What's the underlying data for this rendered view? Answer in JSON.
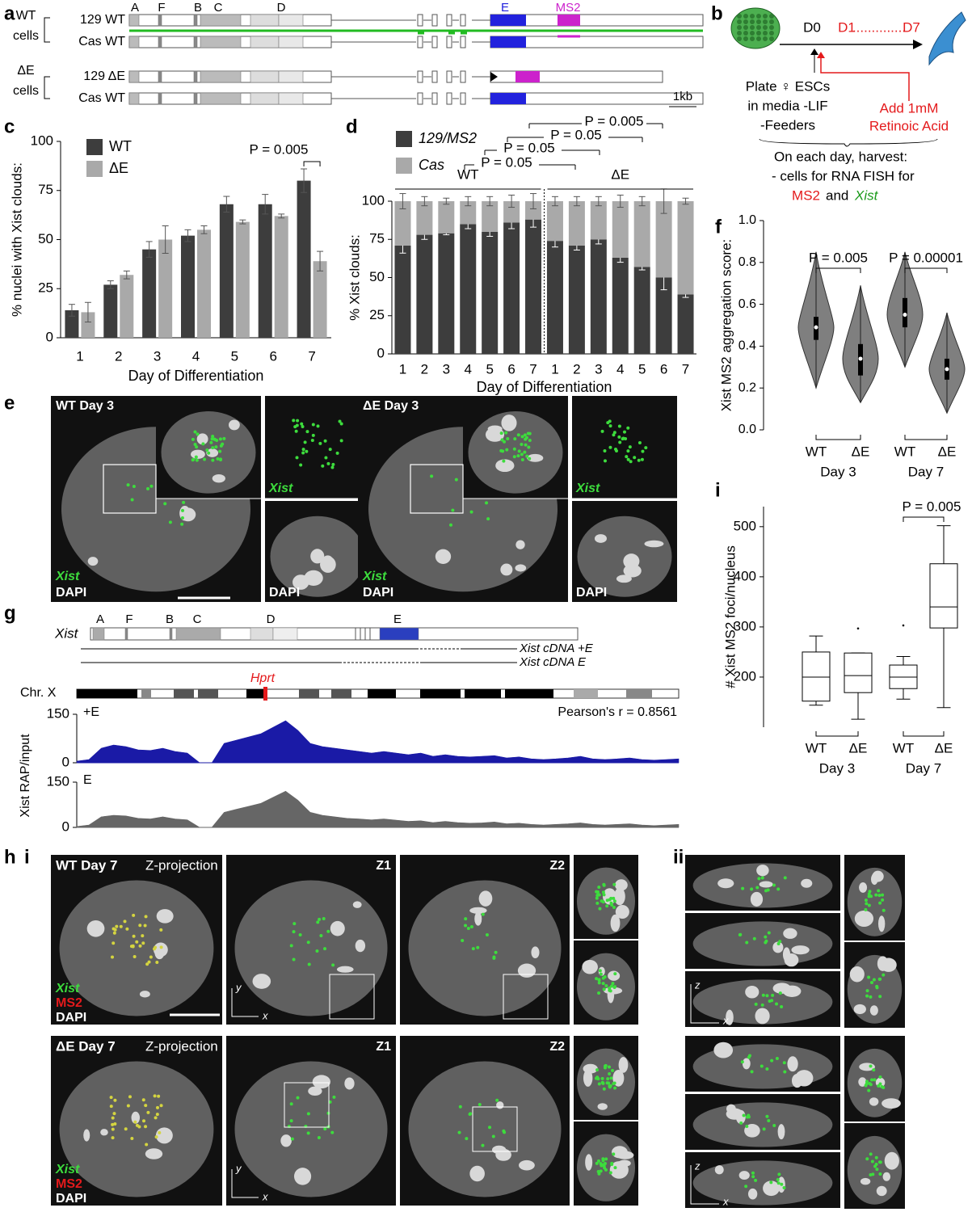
{
  "letters": [
    "a",
    "b",
    "c",
    "d",
    "e",
    "f",
    "g",
    "h",
    "i",
    "ii",
    "i"
  ],
  "a": {
    "rows": [
      "129 WT",
      "Cas WT",
      "129 ΔE",
      "Cas WT"
    ],
    "groups": [
      "WT",
      "cells",
      "ΔE",
      "cells"
    ],
    "exons": [
      "A",
      "F",
      "B",
      "C",
      "D",
      "E",
      "MS2"
    ],
    "scale": "1kb"
  },
  "b": {
    "days": [
      "D0",
      "D1",
      "..............",
      "D7"
    ],
    "left": [
      "Plate ♀ ESCs",
      "in media -LIF",
      "-Feeders"
    ],
    "right": [
      "Add 1mM",
      "Retinoic Acid"
    ],
    "harvest": [
      "On each day, harvest:",
      "- cells for RNA FISH for"
    ],
    "probes": [
      "MS2",
      "and",
      "Xist"
    ]
  },
  "e": {
    "labels": [
      "WT Day 3",
      "Xist",
      "DAPI",
      "Xist",
      "DAPI",
      "ΔE Day 3",
      "Xist",
      "DAPI",
      "Xist",
      "DAPI"
    ]
  },
  "g": {
    "gene": "Xist",
    "exons": [
      "A",
      "F",
      "B",
      "C",
      "D",
      "E"
    ],
    "cdna": [
      "Xist cDNA +E",
      "Xist cDNA   E"
    ],
    "chr": "Chr. X",
    "locus": "Hprt",
    "pearson": "Pearson's r = 0.8561",
    "ylabel": "Xist RAP/input"
  },
  "h": {
    "top": [
      "WT Day 7",
      "Z-projection",
      "Z1",
      "Z2",
      "Xist",
      "MS2",
      "DAPI",
      "y",
      "x"
    ],
    "bottom": [
      "ΔE Day 7",
      "Z-projection",
      "Z1",
      "Z2",
      "Xist",
      "MS2",
      "DAPI",
      "y",
      "x"
    ],
    "side": [
      "z",
      "x",
      "z",
      "x"
    ]
  },
  "chart_data": [
    {
      "type": "bar",
      "categories": [
        "1",
        "2",
        "3",
        "4",
        "5",
        "6",
        "7"
      ],
      "series": [
        {
          "name": "WT",
          "color": "#3d3d3d",
          "values": [
            14,
            27,
            45,
            52,
            68,
            68,
            80
          ],
          "errors": [
            3,
            2,
            4,
            3,
            4,
            5,
            6
          ]
        },
        {
          "name": "ΔE",
          "color": "#a9a9a9",
          "values": [
            13,
            32,
            50,
            55,
            59,
            62,
            39
          ],
          "errors": [
            5,
            2,
            7,
            2,
            1,
            1,
            5
          ]
        }
      ],
      "ylim": [
        0,
        100
      ],
      "yticks": [
        0,
        25,
        50,
        75,
        100
      ],
      "xlabel": "Day of Differentiation",
      "ylabel": "% nuclei with Xist clouds:",
      "annotations": [
        "P = 0.005"
      ],
      "legend": "upper left"
    },
    {
      "type": "stacked_bar",
      "categories": [
        "1",
        "2",
        "3",
        "4",
        "5",
        "6",
        "7",
        "1",
        "2",
        "3",
        "4",
        "5",
        "6",
        "7"
      ],
      "groups": [
        "WT",
        "ΔE"
      ],
      "series": [
        {
          "name": "129/MS2",
          "color": "#3d3d3d",
          "values": [
            71,
            78,
            79,
            85,
            80,
            86,
            88,
            74,
            71,
            75,
            63,
            57,
            50,
            39
          ],
          "errors": [
            5,
            3,
            1,
            3,
            3,
            4,
            5,
            4,
            3,
            3,
            3,
            2,
            8,
            2
          ]
        },
        {
          "name": "Cas",
          "color": "#a9a9a9",
          "values": [
            29,
            22,
            21,
            15,
            20,
            14,
            12,
            26,
            29,
            25,
            37,
            43,
            50,
            61
          ],
          "errors": [
            5,
            3,
            2,
            3,
            3,
            4,
            5,
            3,
            3,
            3,
            4,
            3,
            8,
            2
          ]
        }
      ],
      "ylim": [
        0,
        100
      ],
      "yticks": [
        0,
        25,
        50,
        75,
        100
      ],
      "xlabel": "Day of Differentiation",
      "ylabel": "% Xist clouds:",
      "annotations": [
        "P = 0.05",
        "P = 0.05",
        "P = 0.05",
        "P = 0.005"
      ],
      "legend": "upper left"
    },
    {
      "type": "violin",
      "categories": [
        "WT",
        "ΔE",
        "WT",
        "ΔE"
      ],
      "groups": [
        "Day 3",
        "Day 7"
      ],
      "color": "#7f7f7f",
      "min": [
        0.2,
        0.13,
        0.3,
        0.08
      ],
      "q1": [
        0.43,
        0.26,
        0.49,
        0.24
      ],
      "median": [
        0.49,
        0.34,
        0.55,
        0.29
      ],
      "q3": [
        0.54,
        0.41,
        0.63,
        0.34
      ],
      "max": [
        0.85,
        0.69,
        0.85,
        0.56
      ],
      "ylim": [
        0,
        1
      ],
      "yticks": [
        {
          "value": 0,
          "label": "0.0"
        },
        {
          "value": 0.2,
          "label": "0.2"
        },
        {
          "value": 0.4,
          "label": "0.4"
        },
        {
          "value": 0.6,
          "label": "0.6"
        },
        {
          "value": 0.8,
          "label": "0.8"
        },
        {
          "value": 1,
          "label": "1.0"
        }
      ],
      "ylabel": "Xist MS2 aggregation score:",
      "annotations": [
        "P = 0.005",
        "P = 0.00001"
      ]
    },
    {
      "type": "box",
      "categories": [
        "WT",
        "ΔE",
        "WT",
        "ΔE"
      ],
      "groups": [
        "Day 3",
        "Day 7"
      ],
      "min": [
        144,
        116,
        156,
        139
      ],
      "q1": [
        152,
        169,
        177,
        298
      ],
      "median": [
        200,
        203,
        200,
        340
      ],
      "q3": [
        250,
        248,
        224,
        426
      ],
      "max": [
        282,
        248,
        241,
        502
      ],
      "outliers": [
        [],
        [
          297
        ],
        [
          303
        ],
        []
      ],
      "ylim": [
        100,
        540
      ],
      "yticks": [
        200,
        300,
        400,
        500
      ],
      "ylabel": "# Xist MS2 foci/nucleus",
      "annotations": [
        "P = 0.005"
      ]
    },
    {
      "type": "area",
      "ylim": [
        0,
        150
      ],
      "yticks": [
        0,
        150
      ],
      "series": [
        {
          "name": "+E",
          "color": "#1a1aa6",
          "values": [
            5,
            10,
            45,
            55,
            50,
            40,
            38,
            45,
            35,
            30,
            0,
            0,
            60,
            70,
            80,
            90,
            110,
            130,
            100,
            60,
            50,
            45,
            40,
            35,
            30,
            35,
            30,
            25,
            30,
            20,
            25,
            20,
            18,
            20,
            22,
            15,
            18,
            12,
            10,
            12,
            15,
            20,
            12,
            10,
            12,
            15,
            10,
            8,
            10,
            12
          ]
        },
        {
          "name": "E",
          "color": "#666666",
          "values": [
            3,
            8,
            35,
            40,
            38,
            30,
            28,
            35,
            28,
            25,
            0,
            0,
            50,
            60,
            70,
            80,
            100,
            120,
            90,
            50,
            40,
            35,
            30,
            28,
            25,
            28,
            24,
            20,
            22,
            16,
            20,
            16,
            14,
            15,
            18,
            12,
            14,
            10,
            8,
            10,
            12,
            15,
            10,
            8,
            10,
            12,
            8,
            6,
            8,
            10
          ]
        }
      ]
    }
  ]
}
